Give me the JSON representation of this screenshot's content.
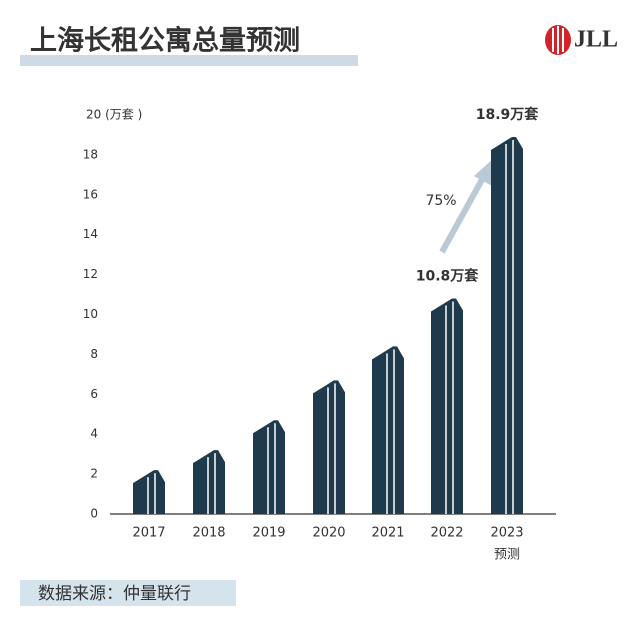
{
  "chart_data": {
    "type": "bar",
    "title": "上海长租公寓总量预测",
    "logo": "JLL",
    "categories": [
      "2017",
      "2018",
      "2019",
      "2020",
      "2021",
      "2022",
      "2023"
    ],
    "values": [
      2.2,
      3.2,
      4.7,
      6.7,
      8.4,
      10.8,
      18.9
    ],
    "value_labels": [
      null,
      null,
      null,
      null,
      null,
      "10.8万套",
      "18.9万套"
    ],
    "forecast_label": "预测",
    "annotation": "75%",
    "color": "#1f3a4d",
    "ylim": [
      0,
      20
    ],
    "yticks": [
      0,
      2,
      4,
      6,
      8,
      10,
      12,
      14,
      16,
      18,
      {
        "value": 20,
        "label": "20 (万套 )"
      }
    ],
    "source": "数据来源：仲量联行"
  }
}
